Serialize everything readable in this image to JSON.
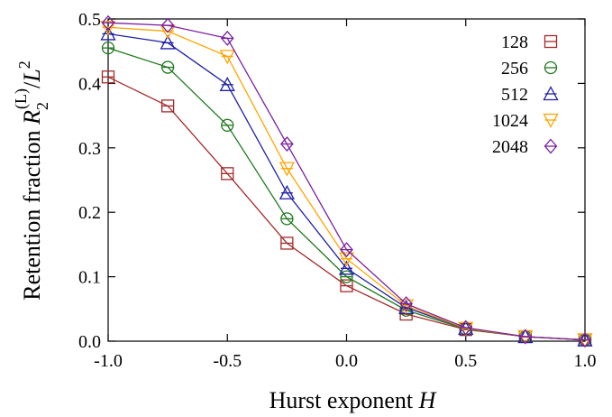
{
  "chart_data": {
    "type": "line",
    "xlabel": "Hurst exponent H",
    "xlabel_parts": {
      "text": "Hurst exponent ",
      "italic": "H"
    },
    "ylabel": "Retention fraction R2(L)/L2",
    "ylabel_parts": {
      "text": "Retention fraction ",
      "R": "R",
      "sub": "2",
      "sup": "(L)",
      "slash": "/",
      "L": "L",
      "sup2": "2"
    },
    "xlim": [
      -1.0,
      1.0
    ],
    "ylim": [
      0.0,
      0.5
    ],
    "xticks": [
      -1.0,
      -0.5,
      0.0,
      0.5,
      1.0
    ],
    "xtick_labels": [
      "-1.0",
      "-0.5",
      "0.0",
      "0.5",
      "1.0"
    ],
    "yticks": [
      0.0,
      0.1,
      0.2,
      0.3,
      0.4,
      0.5
    ],
    "ytick_labels": [
      "0.0",
      "0.1",
      "0.2",
      "0.3",
      "0.4",
      "0.5"
    ],
    "grid": false,
    "legend_position": "top-right",
    "x": [
      -1.0,
      -0.75,
      -0.5,
      -0.25,
      0.0,
      0.25,
      0.5,
      0.75,
      1.0
    ],
    "series": [
      {
        "name": "128",
        "color": "#a52a2a",
        "marker": "square-line",
        "values": [
          0.41,
          0.365,
          0.26,
          0.152,
          0.086,
          0.042,
          0.018,
          0.007,
          0.002
        ]
      },
      {
        "name": "256",
        "color": "#1f7a1f",
        "marker": "circle-line",
        "values": [
          0.455,
          0.425,
          0.335,
          0.19,
          0.1,
          0.048,
          0.019,
          0.007,
          0.002
        ]
      },
      {
        "name": "512",
        "color": "#1f1fa8",
        "marker": "triangle-up-line",
        "values": [
          0.477,
          0.463,
          0.398,
          0.23,
          0.113,
          0.052,
          0.02,
          0.007,
          0.002
        ]
      },
      {
        "name": "1024",
        "color": "#ffa500",
        "marker": "triangle-down-line",
        "values": [
          0.487,
          0.481,
          0.442,
          0.268,
          0.128,
          0.055,
          0.02,
          0.007,
          0.002
        ]
      },
      {
        "name": "2048",
        "color": "#7b1fa2",
        "marker": "diamond-line",
        "values": [
          0.494,
          0.49,
          0.47,
          0.306,
          0.142,
          0.058,
          0.021,
          0.007,
          0.002
        ]
      }
    ]
  }
}
